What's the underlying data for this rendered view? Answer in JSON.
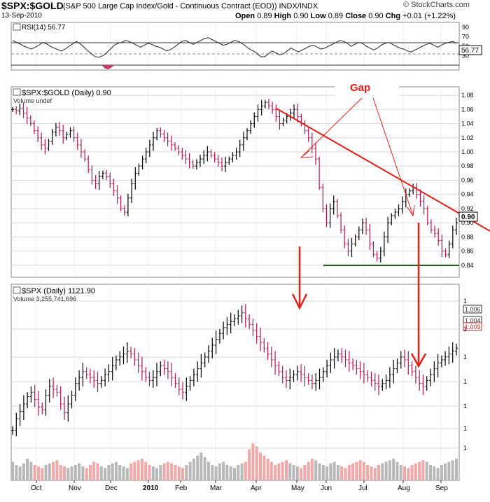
{
  "header": {
    "symbol": "$SPX:$GOLD",
    "description": "(S&P 500 Large Cap Index/Gold - Continuous Contract (EOD)) INDX/INDX",
    "date": "13-Sep-2010",
    "open_label": "Open",
    "open": "0.89",
    "high_label": "High",
    "high": "0.90",
    "low_label": "Low",
    "low": "0.89",
    "close_label": "Close",
    "close": "0.90",
    "chg_label": "Chg",
    "chg": "+0.01 (+1.22%)",
    "brand": "© StockCharts.com"
  },
  "colors": {
    "up_bar": "#000000",
    "down_bar": "#b0185a",
    "trendline": "#e0201a",
    "support": "#1f5a1f",
    "annotation": "#e0201a",
    "volume_up": "#b8b8b8",
    "volume_down": "#f0a8a8",
    "grid": "#d8d8d8"
  },
  "chart_data": [
    {
      "type": "line",
      "panel": "RSI",
      "title": "RSI(14) 56.77",
      "legend_icon": "chart-icon",
      "ylim": [
        0,
        100
      ],
      "y_ticks": [
        30,
        50,
        70,
        90
      ],
      "reference_lines": [
        30,
        50,
        70
      ],
      "last_value": "56.77",
      "x_start": "2009-09-28",
      "interval_days": 2,
      "values": [
        62,
        58,
        55,
        50,
        47,
        44,
        48,
        52,
        58,
        55,
        50,
        46,
        43,
        40,
        44,
        50,
        55,
        60,
        55,
        48,
        40,
        34,
        28,
        27,
        30,
        36,
        44,
        52,
        56,
        58,
        62,
        60,
        56,
        52,
        48,
        52,
        56,
        54,
        50,
        48,
        44,
        40,
        43,
        48,
        54,
        60,
        62,
        58,
        54,
        58,
        62,
        66,
        68,
        64,
        60,
        56,
        52,
        54,
        58,
        62,
        60,
        56,
        50,
        44,
        40,
        35,
        28,
        28,
        34,
        40,
        36,
        32,
        34,
        40,
        46,
        42,
        38,
        42,
        46,
        50,
        52,
        48,
        44,
        46,
        50,
        54,
        58,
        62,
        60,
        56,
        50,
        54,
        58,
        56,
        50,
        46,
        42,
        46,
        52,
        56,
        58,
        54,
        50,
        46,
        44,
        40,
        38,
        42,
        46,
        50,
        54,
        56,
        52,
        48,
        52,
        56,
        58,
        60,
        56
      ]
    },
    {
      "type": "bar",
      "panel": "SPX:GOLD ratio (OHLC bars)",
      "title": "$SPX:$GOLD (Daily) 0.90",
      "legend_icon": "chart-icon",
      "volume_label": "Volume undef",
      "ylim": [
        0.825,
        1.09
      ],
      "y_ticks": [
        0.84,
        0.86,
        0.88,
        0.9,
        0.92,
        0.94,
        0.96,
        0.98,
        1.0,
        1.02,
        1.04,
        1.06,
        1.08
      ],
      "last_value": "0.90",
      "x_start": "2009-09-28",
      "interval_days": 2,
      "close": [
        1.06,
        1.058,
        1.062,
        1.055,
        1.048,
        1.04,
        1.03,
        1.02,
        1.01,
        1.005,
        1.015,
        1.028,
        1.035,
        1.03,
        1.02,
        1.025,
        1.03,
        1.02,
        1.01,
        1.0,
        0.99,
        0.975,
        0.96,
        0.955,
        0.965,
        0.97,
        0.965,
        0.955,
        0.945,
        0.935,
        0.92,
        0.915,
        0.935,
        0.955,
        0.97,
        0.98,
        0.99,
        1.0,
        1.01,
        1.02,
        1.03,
        1.025,
        1.02,
        1.015,
        1.01,
        1.005,
        1.0,
        0.995,
        0.99,
        0.985,
        0.98,
        0.985,
        0.99,
        0.995,
        1.0,
        0.995,
        0.99,
        0.985,
        0.98,
        0.985,
        0.99,
        0.995,
        1.0,
        1.01,
        1.02,
        1.03,
        1.04,
        1.05,
        1.06,
        1.065,
        1.07,
        1.065,
        1.06,
        1.05,
        1.04,
        1.045,
        1.05,
        1.055,
        1.06,
        1.05,
        1.04,
        1.03,
        1.02,
        1.005,
        0.99,
        0.95,
        0.92,
        0.9,
        0.92,
        0.93,
        0.91,
        0.89,
        0.87,
        0.86,
        0.87,
        0.88,
        0.89,
        0.9,
        0.89,
        0.87,
        0.855,
        0.85,
        0.86,
        0.88,
        0.9,
        0.91,
        0.915,
        0.92,
        0.93,
        0.94,
        0.945,
        0.95,
        0.94,
        0.93,
        0.92,
        0.9,
        0.89,
        0.885,
        0.875,
        0.86,
        0.855,
        0.87,
        0.89,
        0.9
      ]
    },
    {
      "type": "bar",
      "panel": "SPX (OHLC bars with volume)",
      "title": "$SPX (Daily) 1121.90",
      "legend_icon": "chart-icon",
      "volume_label": "Volume 3,255,741,696",
      "last_value": "1121.90",
      "y_ticks_left": [
        "1"
      ],
      "ylim": [
        0,
        100
      ],
      "x_start": "2009-09-28",
      "interval_days": 2,
      "close": [
        12,
        20,
        25,
        30,
        35,
        38,
        33,
        28,
        26,
        36,
        42,
        40,
        38,
        30,
        24,
        30,
        36,
        44,
        48,
        52,
        50,
        48,
        46,
        44,
        46,
        50,
        52,
        56,
        60,
        62,
        64,
        66,
        64,
        60,
        56,
        52,
        48,
        46,
        48,
        52,
        56,
        54,
        52,
        48,
        44,
        40,
        38,
        42,
        46,
        50,
        54,
        58,
        62,
        66,
        70,
        74,
        78,
        82,
        84,
        86,
        88,
        90,
        92,
        88,
        84,
        80,
        76,
        72,
        68,
        64,
        60,
        56,
        52,
        48,
        46,
        48,
        50,
        52,
        50,
        48,
        46,
        44,
        46,
        48,
        52,
        56,
        60,
        62,
        64,
        62,
        60,
        58,
        56,
        54,
        52,
        50,
        48,
        46,
        44,
        42,
        44,
        46,
        50,
        54,
        58,
        62,
        60,
        56,
        52,
        48,
        44,
        42,
        46,
        50,
        54,
        58,
        60,
        62,
        64,
        66,
        68
      ],
      "volume": [
        12,
        10,
        9,
        11,
        14,
        12,
        10,
        9,
        8,
        10,
        11,
        12,
        13,
        10,
        9,
        8,
        9,
        10,
        11,
        9,
        8,
        10,
        12,
        11,
        9,
        8,
        10,
        11,
        12,
        10,
        9,
        8,
        11,
        12,
        13,
        14,
        12,
        10,
        9,
        8,
        10,
        11,
        12,
        11,
        10,
        9,
        8,
        10,
        12,
        14,
        16,
        18,
        15,
        12,
        10,
        9,
        11,
        12,
        10,
        9,
        8,
        10,
        11,
        12,
        20,
        24,
        22,
        18,
        16,
        14,
        12,
        10,
        11,
        12,
        13,
        11,
        10,
        9,
        8,
        10,
        12,
        14,
        13,
        11,
        10,
        9,
        11,
        12,
        10,
        9,
        8,
        10,
        11,
        12,
        13,
        12,
        10,
        9,
        8,
        10,
        11,
        12,
        13,
        14,
        12,
        10,
        9,
        8,
        10,
        11,
        12,
        13,
        12,
        10,
        9,
        8,
        10,
        11,
        12,
        13,
        14
      ]
    }
  ],
  "x_axis": {
    "labels": [
      "Oct",
      "Nov",
      "Dec",
      "2010",
      "Feb",
      "Mar",
      "Apr",
      "May",
      "Jun",
      "Jul",
      "Aug",
      "Sep"
    ]
  },
  "annotations": {
    "gap_text": "Gap"
  },
  "price_labels": {
    "ratio_last": "0.90",
    "rsi_last": "56.77",
    "spx_boxes": [
      "1.006",
      "1.004",
      "1.009"
    ]
  }
}
